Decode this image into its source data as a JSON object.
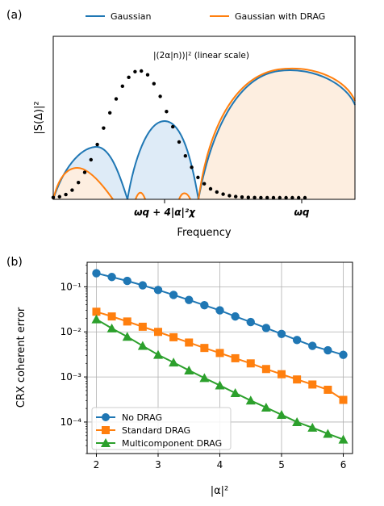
{
  "colors": {
    "blue": "#1f77b4",
    "orange": "#ff7f0e",
    "green": "#2ca02c",
    "blue_fill": "#deebf7",
    "orange_fill": "#fdeee0"
  },
  "panel_a": {
    "label": "(a)",
    "legend": [
      "Gaussian",
      "Gaussian with DRAG"
    ],
    "annotation": "|(2α|n))|² (linear scale)",
    "ylabel": "|S(Δ)|²",
    "xlabel": "Frequency",
    "xticks": [
      "ωq + 4|α|²χ",
      "ωq"
    ]
  },
  "chart_data": [
    {
      "type": "line",
      "panel": "(a)",
      "xlabel": "Frequency",
      "ylabel": "|S(Δ)|²",
      "annotation": "|(2α|n))|² (linear scale)",
      "xticks": [
        "ωq + 4|α|²χ",
        "ωq"
      ],
      "yticks": [],
      "series": [
        {
          "name": "Gaussian",
          "color": "#1f77b4",
          "filled": true
        },
        {
          "name": "Gaussian with DRAG",
          "color": "#ff7f0e",
          "filled": true
        }
      ],
      "photon_distribution": {
        "style": "black dotted",
        "values": [
          0.002,
          0.008,
          0.025,
          0.06,
          0.12,
          0.2,
          0.3,
          0.42,
          0.55,
          0.67,
          0.78,
          0.88,
          0.95,
          0.995,
          1.0,
          0.97,
          0.9,
          0.8,
          0.68,
          0.56,
          0.44,
          0.33,
          0.24,
          0.16,
          0.11,
          0.07,
          0.045,
          0.028,
          0.016,
          0.009,
          0.005,
          0.003,
          0.001,
          0.0005,
          0.0002,
          0.0001,
          0.0,
          0.0,
          0.0,
          0.0,
          0.0
        ]
      }
    },
    {
      "type": "line",
      "panel": "(b)",
      "xlabel": "|α|²",
      "ylabel": "CRX coherent error",
      "xlim": [
        1.85,
        6.15
      ],
      "ylim": [
        2e-05,
        0.35
      ],
      "yscale": "log",
      "xticks": [
        "2",
        "3",
        "4",
        "5",
        "6"
      ],
      "yticks": [
        "10⁻¹",
        "10⁻²",
        "10⁻³",
        "10⁻⁴"
      ],
      "grid": true,
      "legend_position": "lower-left",
      "x": [
        2.0,
        2.25,
        2.5,
        2.75,
        3.0,
        3.25,
        3.5,
        3.75,
        4.0,
        4.25,
        4.5,
        4.75,
        5.0,
        5.25,
        5.5,
        5.75,
        6.0
      ],
      "series": [
        {
          "name": "No DRAG",
          "color": "#1f77b4",
          "marker": "circle",
          "values": [
            0.2,
            0.165,
            0.135,
            0.108,
            0.085,
            0.066,
            0.051,
            0.039,
            0.03,
            0.022,
            0.0165,
            0.0122,
            0.009,
            0.0066,
            0.0049,
            0.0039,
            0.0031
          ]
        },
        {
          "name": "Standard DRAG",
          "color": "#ff7f0e",
          "marker": "square",
          "values": [
            0.028,
            0.022,
            0.017,
            0.013,
            0.01,
            0.0076,
            0.0058,
            0.0044,
            0.0034,
            0.0026,
            0.002,
            0.0015,
            0.00115,
            0.00088,
            0.00068,
            0.00052,
            0.00031
          ]
        },
        {
          "name": "Multicomponent DRAG",
          "color": "#2ca02c",
          "marker": "triangle",
          "values": [
            0.019,
            0.012,
            0.0078,
            0.0049,
            0.0031,
            0.0021,
            0.0014,
            0.00095,
            0.00065,
            0.00044,
            0.0003,
            0.00021,
            0.000145,
            0.0001,
            7.5e-05,
            5.5e-05,
            4.1e-05
          ]
        }
      ]
    }
  ]
}
